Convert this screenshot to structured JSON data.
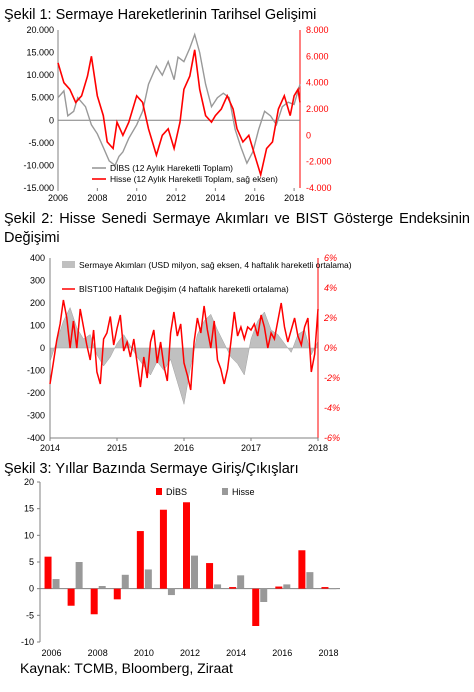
{
  "titles": {
    "fig1": "Şekil 1: Sermaye Hareketlerinin Tarihsel Gelişimi",
    "fig2": "Şekil 2: Hisse Senedi Sermaye Akımları ve BIST Gösterge Endeksinin Değişimi",
    "fig3": "Şekil 3: Yıllar Bazında Sermaye Giriş/Çıkışları"
  },
  "source": "Kaynak: TCMB, Bloomberg, Ziraat",
  "colors": {
    "red": "#ff0000",
    "gray": "#999999",
    "lightgray": "#c0c0c0"
  },
  "chart_data": [
    {
      "type": "line",
      "title": "Şekil 1: Sermaye Hareketlerinin Tarihsel Gelişimi",
      "x_ticks": [
        "2006",
        "2008",
        "2010",
        "2012",
        "2014",
        "2016",
        "2018"
      ],
      "xlim": [
        2006,
        2018.3
      ],
      "y_left": {
        "ticks": [
          "20.000",
          "15.000",
          "10.000",
          "5.000",
          "0",
          "-5.000",
          "-10.000",
          "-15.000"
        ],
        "ylim": [
          -15000,
          20000
        ]
      },
      "y_right": {
        "ticks": [
          "8.000",
          "6.000",
          "4.000",
          "2.000",
          "0",
          "-2.000",
          "-4.000"
        ],
        "ylim": [
          -4000,
          8000
        ]
      },
      "grid": false,
      "legend": "bottom-right",
      "series": [
        {
          "name": "DİBS (12 Aylık Hareketli Toplam)",
          "axis": "left",
          "color": "#999999",
          "x": [
            2006.0,
            2006.3,
            2006.5,
            2006.8,
            2007.0,
            2007.4,
            2007.7,
            2008.0,
            2008.3,
            2008.6,
            2008.9,
            2009.1,
            2009.3,
            2009.6,
            2010.0,
            2010.3,
            2010.6,
            2011.0,
            2011.3,
            2011.6,
            2011.9,
            2012.1,
            2012.4,
            2012.7,
            2012.95,
            2013.2,
            2013.5,
            2013.8,
            2014.1,
            2014.4,
            2014.7,
            2015.0,
            2015.3,
            2015.6,
            2015.9,
            2016.2,
            2016.5,
            2016.8,
            2017.1,
            2017.4,
            2017.7,
            2018.0,
            2018.3
          ],
          "y": [
            5000,
            6500,
            1000,
            2000,
            5000,
            3000,
            -1000,
            -3000,
            -6000,
            -9000,
            -10000,
            -8000,
            -7000,
            -4000,
            -1000,
            2000,
            8000,
            12000,
            10000,
            13000,
            9000,
            14000,
            13000,
            16000,
            19000,
            15000,
            8000,
            3000,
            5000,
            6000,
            5000,
            -2000,
            -6000,
            -9500,
            -7000,
            -2000,
            2000,
            1000,
            -1000,
            3000,
            4000,
            3500,
            8000
          ]
        },
        {
          "name": "Hisse (12 Aylık Hareketli Toplam, sağ eksen)",
          "axis": "right",
          "color": "#ff0000",
          "x": [
            2006.0,
            2006.3,
            2006.6,
            2006.9,
            2007.2,
            2007.5,
            2007.7,
            2008.0,
            2008.3,
            2008.5,
            2008.8,
            2009.0,
            2009.3,
            2009.6,
            2010.0,
            2010.3,
            2010.6,
            2011.0,
            2011.3,
            2011.6,
            2011.9,
            2012.2,
            2012.4,
            2012.7,
            2012.95,
            2013.2,
            2013.5,
            2013.8,
            2014.0,
            2014.3,
            2014.6,
            2014.9,
            2015.1,
            2015.4,
            2015.7,
            2016.0,
            2016.3,
            2016.6,
            2016.9,
            2017.2,
            2017.5,
            2017.8,
            2018.0,
            2018.2,
            2018.3
          ],
          "y": [
            5500,
            4000,
            3500,
            2500,
            3000,
            4500,
            6000,
            3000,
            1500,
            -500,
            -1000,
            1000,
            0,
            1000,
            3000,
            2500,
            500,
            -1500,
            0,
            500,
            -1000,
            1000,
            3500,
            4500,
            6500,
            3500,
            1500,
            1000,
            1500,
            2000,
            3000,
            2000,
            500,
            -500,
            0,
            -1500,
            -3000,
            -1000,
            -500,
            2000,
            3000,
            1500,
            3000,
            3500,
            2500
          ]
        }
      ]
    },
    {
      "type": "bar",
      "title": "Şekil 2: Hisse Senedi Sermaye Akımları ve BIST Gösterge Endeksinin Değişimi",
      "x_ticks": [
        "2014",
        "2015",
        "2016",
        "2017",
        "2018"
      ],
      "xlim": [
        2014,
        2018
      ],
      "y_left": {
        "ticks": [
          "400",
          "300",
          "200",
          "100",
          "0",
          "-100",
          "-200",
          "-300",
          "-400"
        ],
        "ylim": [
          -400,
          400
        ]
      },
      "y_right": {
        "ticks": [
          "6%",
          "4%",
          "2%",
          "0%",
          "-2%",
          "-4%",
          "-6%"
        ],
        "ylim": [
          -6,
          6
        ]
      },
      "grid": false,
      "legend": "top-left",
      "series": [
        {
          "name": "Sermaye Akımları (USD milyon, sağ eksen, 4 haftalık hareketli ortalama)",
          "kind": "area",
          "color": "#c0c0c0",
          "x": [
            2014.0,
            2014.1,
            2014.2,
            2014.3,
            2014.4,
            2014.5,
            2014.6,
            2014.7,
            2014.8,
            2014.9,
            2015.0,
            2015.1,
            2015.2,
            2015.3,
            2015.4,
            2015.5,
            2015.6,
            2015.7,
            2015.8,
            2015.9,
            2016.0,
            2016.1,
            2016.2,
            2016.3,
            2016.4,
            2016.5,
            2016.6,
            2016.7,
            2016.8,
            2016.9,
            2017.0,
            2017.1,
            2017.2,
            2017.3,
            2017.4,
            2017.5,
            2017.6,
            2017.7,
            2017.8,
            2017.9,
            2018.0
          ],
          "y": [
            -60,
            30,
            120,
            180,
            90,
            40,
            60,
            -30,
            -80,
            -40,
            20,
            60,
            10,
            -40,
            -80,
            -120,
            -60,
            -100,
            -50,
            -150,
            -250,
            -80,
            60,
            120,
            150,
            80,
            20,
            -40,
            -70,
            -120,
            40,
            120,
            160,
            80,
            60,
            20,
            -20,
            60,
            80,
            -30,
            30
          ]
        },
        {
          "name": "BİST100 Haftalık Değişim (4 haftalık hareketli ortalama)",
          "kind": "line",
          "color": "#ff0000",
          "x": [
            2014.0,
            2014.05,
            2014.1,
            2014.15,
            2014.2,
            2014.25,
            2014.3,
            2014.35,
            2014.4,
            2014.45,
            2014.5,
            2014.55,
            2014.6,
            2014.65,
            2014.7,
            2014.75,
            2014.8,
            2014.85,
            2014.9,
            2014.95,
            2015.0,
            2015.05,
            2015.1,
            2015.15,
            2015.2,
            2015.25,
            2015.3,
            2015.35,
            2015.4,
            2015.45,
            2015.5,
            2015.55,
            2015.6,
            2015.65,
            2015.7,
            2015.75,
            2015.8,
            2015.85,
            2015.9,
            2015.95,
            2016.0,
            2016.05,
            2016.1,
            2016.15,
            2016.2,
            2016.25,
            2016.3,
            2016.35,
            2016.4,
            2016.45,
            2016.5,
            2016.55,
            2016.6,
            2016.65,
            2016.7,
            2016.75,
            2016.8,
            2016.85,
            2016.9,
            2016.95,
            2017.0,
            2017.05,
            2017.1,
            2017.15,
            2017.2,
            2017.25,
            2017.3,
            2017.35,
            2017.4,
            2017.45,
            2017.5,
            2017.55,
            2017.6,
            2017.65,
            2017.7,
            2017.75,
            2017.8,
            2017.85,
            2017.9,
            2017.95,
            2018.0
          ],
          "y": [
            -2.4,
            -1.0,
            0.5,
            1.6,
            3.2,
            2.0,
            0.0,
            1.8,
            0.0,
            2.6,
            1.4,
            0.2,
            -0.8,
            1.2,
            -1.6,
            -2.4,
            0.6,
            1.0,
            2.1,
            0.2,
            1.3,
            2.2,
            -0.2,
            0.4,
            -0.6,
            0.6,
            -1.0,
            -2.6,
            -0.6,
            -2.0,
            0.4,
            1.2,
            -1.0,
            0.4,
            -1.2,
            -2.2,
            1.0,
            2.4,
            0.8,
            1.6,
            -1.0,
            -1.8,
            -2.8,
            0.4,
            2.0,
            1.0,
            2.8,
            1.2,
            0.0,
            1.8,
            -0.8,
            -1.4,
            -2.4,
            -1.4,
            0.4,
            2.4,
            0.8,
            1.4,
            0.6,
            1.4,
            1.2,
            1.6,
            0.8,
            2.2,
            1.4,
            0.0,
            1.0,
            0.6,
            1.8,
            3.0,
            1.4,
            0.4,
            1.2,
            2.0,
            0.8,
            0.2,
            1.4,
            2.0,
            -1.6,
            -0.4,
            2.6
          ]
        }
      ]
    },
    {
      "type": "bar",
      "title": "Şekil 3: Yıllar Bazında Sermaye Giriş/Çıkışları",
      "x_ticks": [
        "2006",
        "2008",
        "2010",
        "2012",
        "2014",
        "2016",
        "2018"
      ],
      "categories": [
        "2006",
        "2007",
        "2008",
        "2009",
        "2010",
        "2011",
        "2012",
        "2013",
        "2014",
        "2015",
        "2016",
        "2017",
        "2018"
      ],
      "ylim": [
        -10,
        20
      ],
      "y_ticks": [
        "20",
        "15",
        "10",
        "5",
        "0",
        "-5",
        "-10"
      ],
      "grid": false,
      "legend": "top-right",
      "series": [
        {
          "name": "DİBS",
          "color": "#ff0000",
          "values": [
            6.0,
            -3.2,
            -4.8,
            -2.0,
            10.8,
            14.8,
            16.2,
            4.8,
            0.3,
            -7.0,
            0.4,
            7.2,
            0.3
          ]
        },
        {
          "name": "Hisse",
          "color": "#999999",
          "values": [
            1.8,
            5.0,
            0.5,
            2.6,
            3.6,
            -1.2,
            6.2,
            0.8,
            2.5,
            -2.5,
            0.8,
            3.1,
            0.0
          ]
        }
      ]
    }
  ]
}
